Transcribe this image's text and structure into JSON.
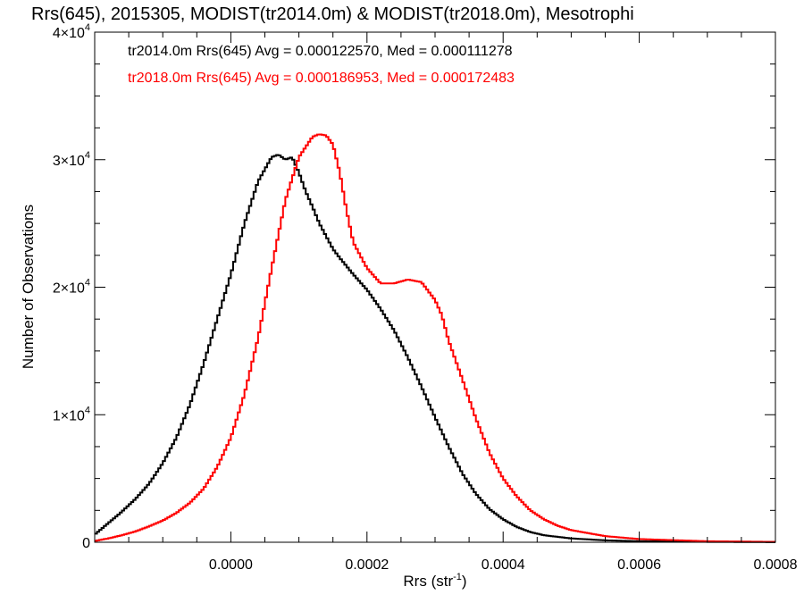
{
  "chart_data": {
    "type": "line",
    "title": "Rrs(645), 2015305, MODIST(tr2014.0m) & MODIST(tr2018.0m), Mesotrophi",
    "xlabel_main": "Rrs (str",
    "xlabel_sup": "-1",
    "xlabel_close": ")",
    "ylabel": "Number of Observations",
    "xlim": [
      -0.0002,
      0.0008
    ],
    "ylim": [
      0,
      40000
    ],
    "x_ticks": [
      {
        "value": 0.0,
        "label": "0.0000"
      },
      {
        "value": 0.0002,
        "label": "0.0002"
      },
      {
        "value": 0.0004,
        "label": "0.0004"
      },
      {
        "value": 0.0006,
        "label": "0.0006"
      },
      {
        "value": 0.0008,
        "label": "0.0008"
      }
    ],
    "y_ticks": [
      {
        "value": 0,
        "mant": "0",
        "exp": ""
      },
      {
        "value": 10000,
        "mant": "1×10",
        "exp": "4"
      },
      {
        "value": 20000,
        "mant": "2×10",
        "exp": "4"
      },
      {
        "value": 30000,
        "mant": "3×10",
        "exp": "4"
      },
      {
        "value": 40000,
        "mant": "4×10",
        "exp": "4"
      }
    ],
    "legend": [
      {
        "text": "tr2014.0m Rrs(645) Avg = 0.000122570, Med = 0.000111278",
        "color": "#000000"
      },
      {
        "text": "tr2018.0m Rrs(645) Avg = 0.000186953, Med = 0.000172483",
        "color": "#ff0000"
      }
    ],
    "series": [
      {
        "color": "#000000",
        "points": [
          [
            -0.0002,
            600
          ],
          [
            -0.00018,
            1500
          ],
          [
            -0.00016,
            2400
          ],
          [
            -0.00014,
            3400
          ],
          [
            -0.00012,
            4600
          ],
          [
            -0.0001,
            6200
          ],
          [
            -8e-05,
            8200
          ],
          [
            -6e-05,
            10800
          ],
          [
            -4e-05,
            14000
          ],
          [
            -2e-05,
            17500
          ],
          [
            0.0,
            21000
          ],
          [
            2e-05,
            25000
          ],
          [
            4e-05,
            28300
          ],
          [
            6e-05,
            30200
          ],
          [
            7e-05,
            30400
          ],
          [
            8e-05,
            30000
          ],
          [
            9e-05,
            30200
          ],
          [
            0.0001,
            29000
          ],
          [
            0.00011,
            27500
          ],
          [
            0.00012,
            26300
          ],
          [
            0.00013,
            25000
          ],
          [
            0.00014,
            24000
          ],
          [
            0.00015,
            23000
          ],
          [
            0.00016,
            22300
          ],
          [
            0.00018,
            21000
          ],
          [
            0.0002,
            19800
          ],
          [
            0.00022,
            18300
          ],
          [
            0.00024,
            16600
          ],
          [
            0.00026,
            14500
          ],
          [
            0.00028,
            12200
          ],
          [
            0.0003,
            9800
          ],
          [
            0.00032,
            7500
          ],
          [
            0.00034,
            5400
          ],
          [
            0.00036,
            3800
          ],
          [
            0.00038,
            2600
          ],
          [
            0.0004,
            1800
          ],
          [
            0.00042,
            1200
          ],
          [
            0.00044,
            800
          ],
          [
            0.00046,
            550
          ],
          [
            0.0005,
            300
          ],
          [
            0.00055,
            150
          ],
          [
            0.0006,
            80
          ],
          [
            0.0007,
            30
          ],
          [
            0.0008,
            10
          ]
        ]
      },
      {
        "color": "#ff0000",
        "points": [
          [
            -0.0002,
            100
          ],
          [
            -0.00018,
            300
          ],
          [
            -0.00016,
            550
          ],
          [
            -0.00014,
            850
          ],
          [
            -0.00012,
            1250
          ],
          [
            -0.0001,
            1700
          ],
          [
            -8e-05,
            2300
          ],
          [
            -6e-05,
            3100
          ],
          [
            -4e-05,
            4200
          ],
          [
            -2e-05,
            5900
          ],
          [
            0.0,
            8200
          ],
          [
            2e-05,
            11600
          ],
          [
            4e-05,
            16000
          ],
          [
            6e-05,
            21500
          ],
          [
            8e-05,
            26800
          ],
          [
            0.0001,
            30200
          ],
          [
            0.00012,
            31800
          ],
          [
            0.00013,
            32000
          ],
          [
            0.00014,
            31900
          ],
          [
            0.00015,
            31200
          ],
          [
            0.00016,
            29000
          ],
          [
            0.00017,
            26000
          ],
          [
            0.00018,
            23500
          ],
          [
            0.0002,
            21500
          ],
          [
            0.00022,
            20300
          ],
          [
            0.00024,
            20300
          ],
          [
            0.00026,
            20600
          ],
          [
            0.00028,
            20400
          ],
          [
            0.0003,
            19000
          ],
          [
            0.00031,
            17800
          ],
          [
            0.00032,
            15800
          ],
          [
            0.00034,
            12800
          ],
          [
            0.00036,
            9700
          ],
          [
            0.00038,
            7000
          ],
          [
            0.0004,
            5000
          ],
          [
            0.00042,
            3600
          ],
          [
            0.00044,
            2500
          ],
          [
            0.00046,
            1800
          ],
          [
            0.00048,
            1300
          ],
          [
            0.0005,
            950
          ],
          [
            0.00055,
            480
          ],
          [
            0.0006,
            250
          ],
          [
            0.0007,
            80
          ],
          [
            0.0008,
            30
          ]
        ]
      }
    ]
  }
}
